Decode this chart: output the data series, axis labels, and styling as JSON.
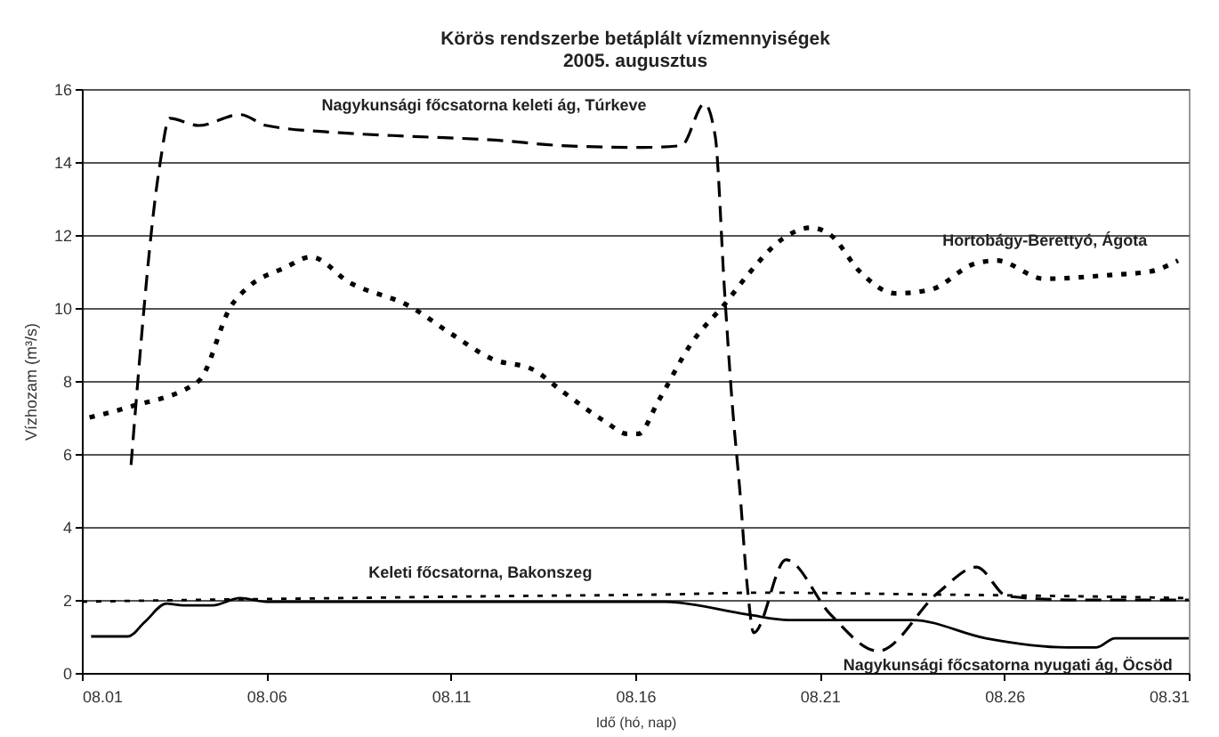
{
  "chart_data": {
    "type": "line",
    "title": "Körös rendszerbe betáplált vízmennyiségek",
    "subtitle": "2005. augusztus",
    "xlabel": "Idő (hó, nap)",
    "ylabel": "Vízhozam (m³/s)",
    "xlim": [
      "--08-01",
      "--08-31"
    ],
    "xticks": [
      {
        "value": "--08-01",
        "label": "08.01"
      },
      {
        "value": "--08-06",
        "label": "08.06"
      },
      {
        "value": "--08-11",
        "label": "08.11"
      },
      {
        "value": "--08-16",
        "label": "08.16"
      },
      {
        "value": "--08-21",
        "label": "08.21"
      },
      {
        "value": "--08-26",
        "label": "08.26"
      },
      {
        "value": "--08-31",
        "label": "08.31"
      }
    ],
    "ylim": [
      0,
      16
    ],
    "yticks": [
      0,
      2,
      4,
      6,
      8,
      10,
      12,
      14,
      16
    ],
    "grid": "y",
    "marker": "none",
    "series": [
      {
        "name": "Nagykunsági főcsatorna keleti ág, Túrkeve",
        "color": "#000000",
        "line_style": "dashed",
        "x": [
          "--08-02T08:00",
          "--08-03T03:00",
          "--08-03T09:00",
          "--08-04T04:00",
          "--08-05T07:00",
          "--08-06",
          "--08-08",
          "--08-10",
          "--08-12T05:00",
          "--08-14",
          "--08-16T05:00",
          "--08-17T06:00",
          "--08-17T21:00",
          "--08-18T04:00",
          "--08-18T10:00",
          "--08-18T15:00",
          "--08-18T20:00",
          "--08-19T01:00",
          "--08-19T05:00",
          "--08-20T02:00",
          "--08-21T07:00",
          "--08-22T14:00",
          "--08-24T05:00",
          "--08-25T06:00",
          "--08-26T02:00",
          "--08-28",
          "--08-31"
        ],
        "values": [
          5.7,
          14.0,
          15.2,
          15.0,
          15.3,
          15.0,
          14.8,
          14.7,
          14.6,
          14.45,
          14.4,
          14.45,
          15.6,
          14.7,
          10.5,
          7.4,
          5.0,
          2.3,
          1.1,
          3.1,
          1.6,
          0.6,
          2.2,
          2.9,
          2.1,
          2.0,
          2.0
        ]
      },
      {
        "name": "Hortobágy-Berettyó, Ágota",
        "color": "#000000",
        "line_style": "dotted",
        "x": [
          "--08-01T05:00",
          "--08-02T08:00",
          "--08-04T04:00",
          "--08-05T01:00",
          "--08-05T13:00",
          "--08-06T12:00",
          "--08-07T05:00",
          "--08-08T06:00",
          "--08-09T21:00",
          "--08-11",
          "--08-12T03:00",
          "--08-13T06:00",
          "--08-14T01:00",
          "--08-15T04:00",
          "--08-15T19:00",
          "--08-16T02:00",
          "--08-16T15:00",
          "--08-17T12:00",
          "--08-18T12:00",
          "--08-19T01:00",
          "--08-20",
          "--08-20T18:00",
          "--08-21T07:00",
          "--08-22T02:00",
          "--08-23T01:00",
          "--08-24",
          "--08-25T04:00",
          "--08-25T19:00",
          "--08-27T02:00",
          "--08-28T20:00",
          "--08-29T23:00",
          "--08-30T17:00"
        ],
        "values": [
          7.0,
          7.3,
          8.0,
          10.05,
          10.6,
          11.1,
          11.4,
          10.7,
          10.05,
          9.3,
          8.6,
          8.3,
          7.7,
          6.9,
          6.55,
          6.55,
          7.45,
          9.0,
          10.2,
          10.9,
          11.9,
          12.2,
          12.0,
          11.0,
          10.4,
          10.5,
          11.2,
          11.3,
          10.8,
          10.9,
          11.0,
          11.3
        ]
      },
      {
        "name": "Keleti főcsatorna, Bakonszeg",
        "color": "#000000",
        "line_style": "dotted",
        "x": [
          "--08-01",
          "--08-04",
          "--08-08",
          "--08-12",
          "--08-16T19:00",
          "--08-19T12:00",
          "--08-24",
          "--08-28",
          "--08-31"
        ],
        "values": [
          1.95,
          2.0,
          2.05,
          2.1,
          2.15,
          2.2,
          2.15,
          2.1,
          2.05
        ]
      },
      {
        "name": "Nagykunsági főcsatorna nyugati ág, Öcsöd",
        "color": "#000000",
        "line_style": "solid",
        "x": [
          "--08-01T06:00",
          "--08-02T06:00",
          "--08-02T17:00",
          "--08-03T07:00",
          "--08-03T18:00",
          "--08-04T13:00",
          "--08-05T07:00",
          "--08-06",
          "--08-10",
          "--08-16T19:00",
          "--08-19T01:00",
          "--08-20T04:00",
          "--08-23T12:00",
          "--08-25T12:00",
          "--08-27T17:00",
          "--08-28T12:00",
          "--08-29",
          "--08-31"
        ],
        "values": [
          1.0,
          1.0,
          1.4,
          1.9,
          1.85,
          1.85,
          2.05,
          1.95,
          1.95,
          1.95,
          1.6,
          1.45,
          1.45,
          0.95,
          0.7,
          0.7,
          0.95,
          0.95
        ]
      }
    ]
  }
}
